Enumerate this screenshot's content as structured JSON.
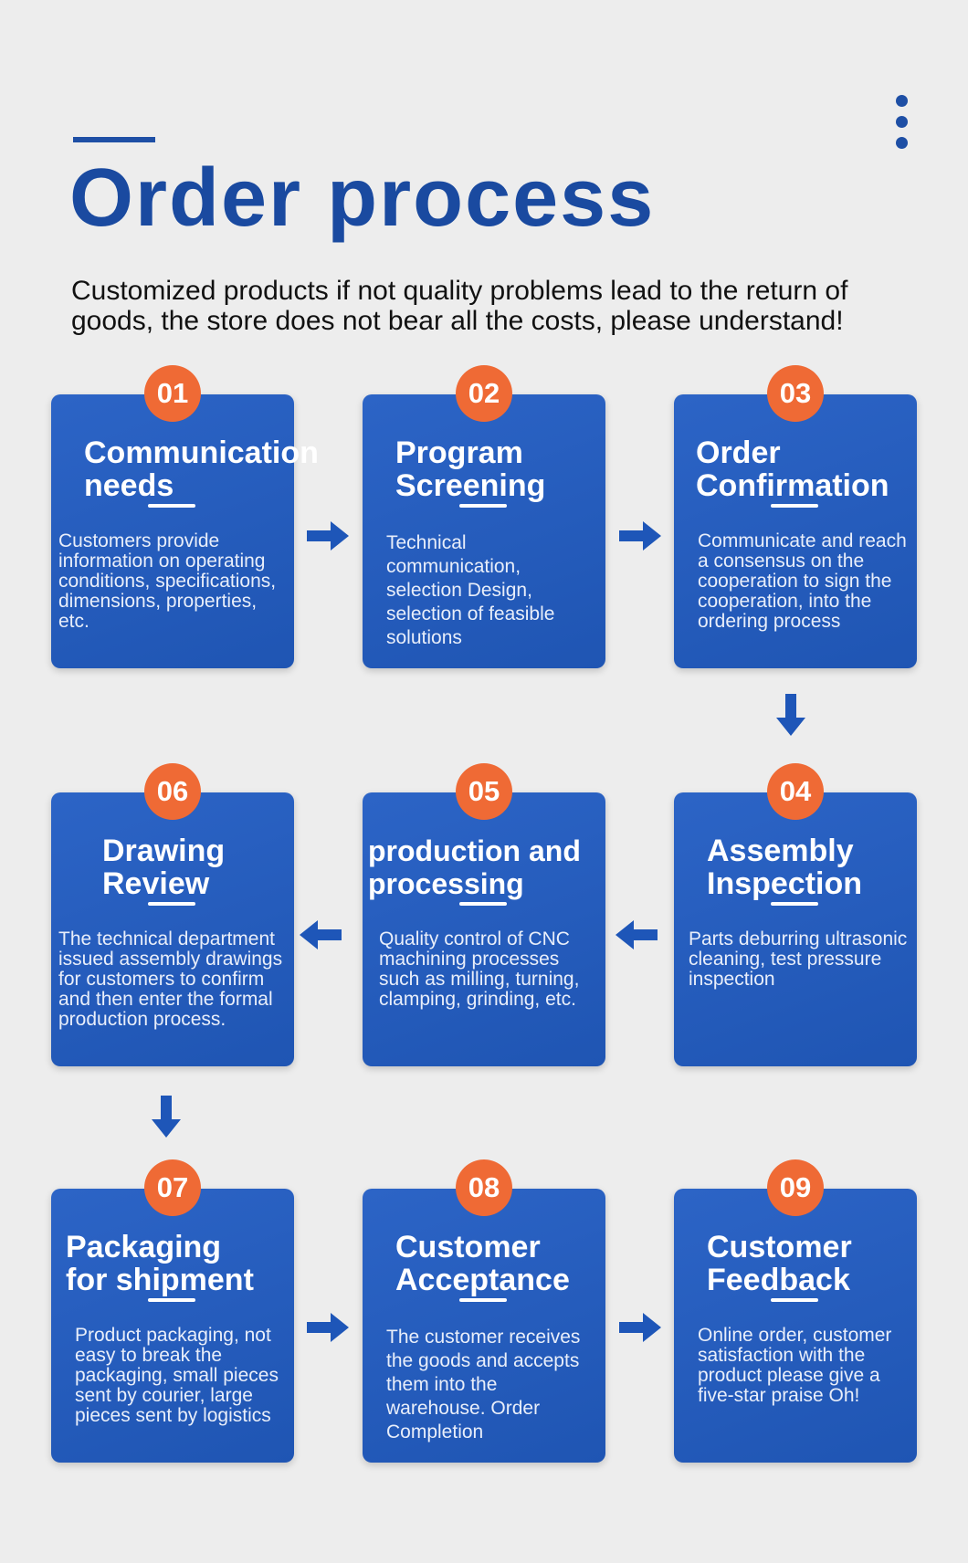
{
  "header": {
    "title": "Order process",
    "notice": "Customized products if not quality problems lead to the return of goods, the store does not bear all the costs, please understand!"
  },
  "colors": {
    "card_blue": "#2c64c6",
    "badge_orange": "#ef6a35",
    "title_blue": "#1a4aa0",
    "arrow_blue": "#1e56b8"
  },
  "steps": [
    {
      "num": "01",
      "title": "Communication needs",
      "desc": "Customers provide information on operating conditions, specifications, dimensions, properties, etc."
    },
    {
      "num": "02",
      "title": "Program Screening",
      "desc": "Technical communication, selection Design, selection of feasible solutions"
    },
    {
      "num": "03",
      "title": "Order Confirmation",
      "desc": "Communicate and reach a consensus on the cooperation to sign the cooperation, into the ordering process"
    },
    {
      "num": "04",
      "title": "Assembly Inspection",
      "desc": "Parts deburring ultrasonic cleaning, test pressure inspection"
    },
    {
      "num": "05",
      "title": "production and processing",
      "desc": "Quality control of CNC machining processes such as milling, turning, clamping, grinding, etc."
    },
    {
      "num": "06",
      "title": "Drawing Review",
      "desc": "The technical department issued assembly drawings for customers to confirm and then enter the formal production process."
    },
    {
      "num": "07",
      "title": "Packaging for shipment",
      "desc": "Product packaging, not easy to break the packaging, small pieces sent by courier, large pieces sent by logistics"
    },
    {
      "num": "08",
      "title": "Customer Acceptance",
      "desc": "The customer receives the goods and accepts them into the warehouse. Order Completion"
    },
    {
      "num": "09",
      "title": "Customer Feedback",
      "desc": "Online order, customer satisfaction with the product please give a five-star praise Oh!"
    }
  ]
}
